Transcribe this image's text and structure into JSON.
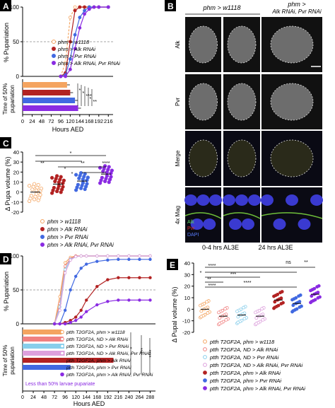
{
  "panels": {
    "A": {
      "letter": "A",
      "ylabel_top": "% Pupariation",
      "ylabel_bottom_1": "Time of 50%",
      "ylabel_bottom_2": "pupariation",
      "yticks_top": [
        "100",
        "50",
        "0"
      ],
      "xticks": [
        "0",
        "24",
        "48",
        "72",
        "96",
        "120",
        "144",
        "168",
        "192",
        "216"
      ],
      "xlabel": "Hours AED",
      "legend": [
        "phm > w1118",
        "phm > Alk RNAi",
        "phm > Pvr RNAi",
        "phm > Alk RNAi, Pvr RNAi"
      ],
      "sig": [
        "*",
        "*",
        "***",
        "*",
        "**"
      ],
      "colors": [
        "#f4a460",
        "#b22222",
        "#4169e1",
        "#8a2be2"
      ]
    },
    "B": {
      "letter": "B",
      "col1": "phm > w1118",
      "col3_1": "phm >",
      "col3_2": "Alk RNAi, Pvr RNAi",
      "rows": [
        "Alk",
        "Pvr",
        "Merge",
        "4x Mag"
      ],
      "merge_legend": [
        "Alk",
        "Pvr",
        "DAPI"
      ],
      "bottom1": "0-4 hrs AL3E",
      "bottom2": "24 hrs AL3E"
    },
    "C": {
      "letter": "C",
      "ylabel": "Δ Pupa volume (%)",
      "yticks": [
        "40",
        "30",
        "20",
        "10",
        "0",
        "-10",
        "-20"
      ],
      "sig": [
        "*",
        "**",
        "**",
        "****",
        "*",
        "*"
      ],
      "legend": [
        "phm > w1118",
        "phm > Alk RNAi",
        "phm > Pvr RNAi",
        "phm > Alk RNAi, Pvr RNAi"
      ]
    },
    "D": {
      "letter": "D",
      "ylabel_top": "% Pupariation",
      "ylabel_bottom_1": "Time of 50%",
      "ylabel_bottom_2": "pupariation",
      "yticks_top": [
        "100",
        "50",
        "0"
      ],
      "xticks": [
        "0",
        "24",
        "48",
        "72",
        "96",
        "120",
        "144",
        "168",
        "192",
        "216",
        "240",
        "264",
        "288"
      ],
      "xlabel": "Hours AED",
      "legend": [
        "ptth T2GF2A, phm > w1118",
        "ptth T2GF2A, ND > Alk RNAi",
        "ptth T2GF2A, ND > Pvr RNAi",
        "ptth T2GF2A, ND > Alk RNAi, Pvr RNAi",
        "ptth T2GF2A, phm > Alk RNAi",
        "ptth T2GF2A, phm > Pvr RNAi",
        "ptth T2GF2A, phm > Alk RNAi, Pvr RNAi"
      ],
      "note": "Less than 50% larvae pupariate",
      "sig": [
        "*",
        "***",
        "****"
      ]
    },
    "E": {
      "letter": "E",
      "ylabel": "Δ Pupal volume (%)",
      "yticks": [
        "40",
        "30",
        "20",
        "10",
        "0",
        "-10",
        "-20"
      ],
      "sig": [
        "****",
        "*",
        "***",
        "**",
        "****",
        "****",
        "ns",
        "**"
      ],
      "legend": [
        "ptth T2GF2A, phm > w1118",
        "ptth T2GF2A, ND > Alk RNAi",
        "ptth T2GF2A, ND > Pvr RNAi",
        "ptth T2GF2A, ND > Alk RNAi, Pvr RNAi",
        "ptth T2GF2A, phm > Alk RNAi",
        "ptth T2GF2A, phm > Pvr RNAi",
        "ptth T2GF2A, phm > Alk RNAi, Pvr RNAi"
      ]
    }
  },
  "chart_data": [
    {
      "type": "line",
      "panel": "A",
      "x": [
        96,
        108,
        120,
        132,
        144,
        156,
        168,
        180,
        192,
        216
      ],
      "series": [
        {
          "name": "phm > w1118",
          "values": [
            0,
            20,
            85,
            100,
            100,
            100,
            100,
            100,
            100,
            100
          ]
        },
        {
          "name": "phm > Alk RNAi",
          "values": [
            0,
            5,
            50,
            95,
            100,
            100,
            100,
            100,
            100,
            100
          ]
        },
        {
          "name": "phm > Pvr RNAi",
          "values": [
            0,
            2,
            25,
            60,
            85,
            95,
            100,
            100,
            100,
            100
          ]
        },
        {
          "name": "phm > Alk RNAi, Pvr RNAi",
          "values": [
            0,
            0,
            10,
            40,
            70,
            90,
            97,
            100,
            100,
            100
          ]
        }
      ],
      "ylim": [
        0,
        100
      ],
      "xlim": [
        0,
        228
      ]
    },
    {
      "type": "bar",
      "panel": "A-bottom",
      "categories": [
        "phm > w1118",
        "phm > Alk RNAi",
        "phm > Pvr RNAi",
        "phm > Alk RNAi, Pvr RNAi"
      ],
      "values": [
        112,
        120,
        132,
        140
      ],
      "xlim": [
        0,
        228
      ]
    },
    {
      "type": "scatter",
      "panel": "C",
      "categories": [
        "phm > w1118",
        "phm > Alk RNAi",
        "phm > Pvr RNAi",
        "phm > Alk RNAi, Pvr RNAi"
      ],
      "means": [
        0,
        8,
        11,
        18
      ],
      "ylim": [
        -20,
        40
      ]
    },
    {
      "type": "line",
      "panel": "D",
      "x": [
        72,
        84,
        96,
        108,
        120,
        132,
        144,
        168,
        192,
        216,
        240,
        264,
        288
      ],
      "series": [
        {
          "name": "ptth T2GF2A, phm > w1118",
          "values": [
            0,
            40,
            90,
            98,
            100,
            100,
            100,
            100,
            100,
            100,
            100,
            100,
            100
          ]
        },
        {
          "name": "ptth T2GF2A, ND > Alk RNAi",
          "values": [
            0,
            30,
            85,
            96,
            100,
            100,
            100,
            100,
            100,
            100,
            100,
            100,
            100
          ]
        },
        {
          "name": "ptth T2GF2A, ND > Pvr RNAi",
          "values": [
            0,
            25,
            80,
            95,
            99,
            100,
            100,
            100,
            100,
            100,
            100,
            100,
            100
          ]
        },
        {
          "name": "ptth T2GF2A, ND > Alk RNAi, Pvr RNAi",
          "values": [
            0,
            20,
            75,
            94,
            99,
            100,
            100,
            100,
            100,
            100,
            100,
            100,
            100
          ]
        },
        {
          "name": "ptth T2GF2A, phm > Alk RNAi",
          "values": [
            0,
            0,
            2,
            5,
            10,
            20,
            35,
            55,
            65,
            68,
            68,
            68,
            68
          ]
        },
        {
          "name": "ptth T2GF2A, phm > Pvr RNAi",
          "values": [
            0,
            0,
            20,
            50,
            70,
            82,
            88,
            92,
            94,
            95,
            95,
            95,
            95
          ]
        },
        {
          "name": "ptth T2GF2A, phm > Alk RNAi, Pvr RNAi",
          "values": [
            0,
            0,
            0,
            2,
            5,
            10,
            18,
            28,
            33,
            35,
            35,
            35,
            35
          ]
        }
      ],
      "ylim": [
        0,
        100
      ],
      "xlim": [
        0,
        300
      ]
    },
    {
      "type": "bar",
      "panel": "D-bottom",
      "categories": [
        "ptth T2GF2A, phm > w1118",
        "ptth T2GF2A, ND > Alk RNAi",
        "ptth T2GF2A, ND > Pvr RNAi",
        "ptth T2GF2A, ND > Alk RNAi, Pvr RNAi",
        "ptth T2GF2A, phm > Alk RNAi",
        "ptth T2GF2A, phm > Pvr RNAi",
        "ptth T2GF2A, phm > Alk RNAi, Pvr RNAi"
      ],
      "values": [
        88,
        92,
        94,
        95,
        205,
        108,
        0
      ],
      "xlim": [
        0,
        300
      ]
    },
    {
      "type": "scatter",
      "panel": "E",
      "categories": [
        "ptth T2GF2A, phm > w1118",
        "ptth T2GF2A, ND > Alk RNAi",
        "ptth T2GF2A, ND > Pvr RNAi",
        "ptth T2GF2A, ND > Alk RNAi, Pvr RNAi",
        "ptth T2GF2A, phm > Alk RNAi",
        "ptth T2GF2A, phm > Pvr RNAi",
        "ptth T2GF2A, phm > Alk RNAi, Pvr RNAi"
      ],
      "means": [
        0,
        -6,
        -5,
        -6,
        8,
        5,
        13
      ],
      "ylim": [
        -20,
        40
      ]
    }
  ],
  "colors": {
    "w1118": "#f4a460",
    "alk": "#b22222",
    "pvr": "#4169e1",
    "both": "#8a2be2",
    "nd_alk": "#f08080",
    "nd_pvr": "#87ceeb",
    "nd_both": "#dda0dd"
  }
}
